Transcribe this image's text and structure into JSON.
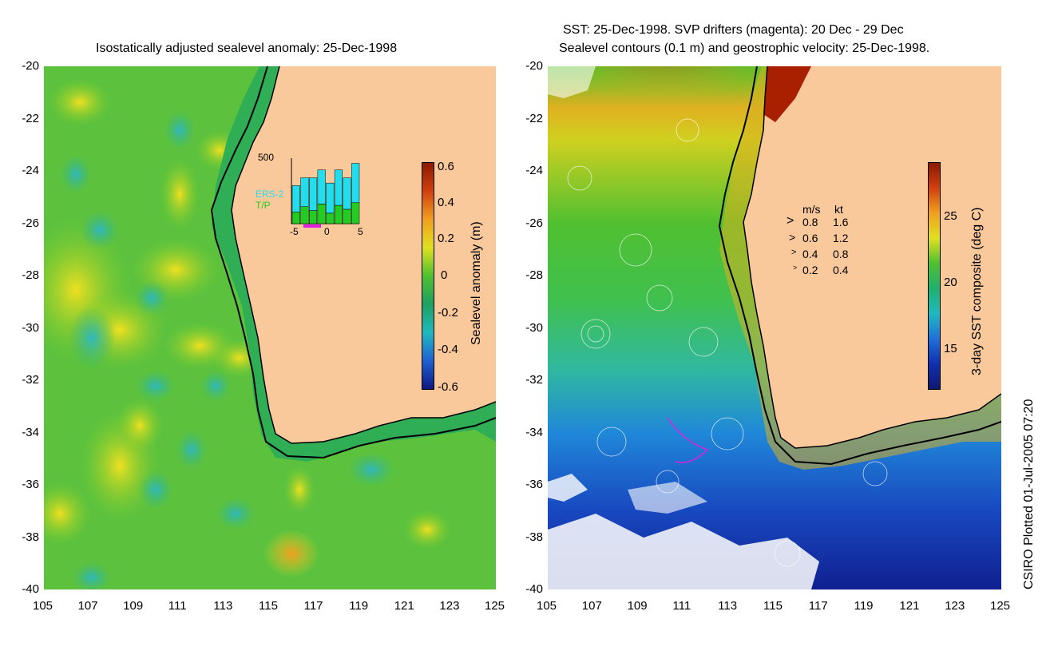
{
  "left_panel": {
    "title": "Isostatically adjusted sealevel anomaly: 25-Dec-1998",
    "colorbar_label": "Sealevel anomaly (m)",
    "colorbar_ticks": [
      "0.6",
      "0.4",
      "0.2",
      "0",
      "-0.2",
      "-0.4",
      "-0.6"
    ],
    "inset": {
      "ymax_label": "500",
      "series": [
        {
          "name": "ERS-2",
          "color": "#22ddee",
          "values": [
            200,
            220,
            250,
            260,
            230,
            270,
            240,
            300
          ]
        },
        {
          "name": "T/P",
          "color": "#22cc22",
          "values": [
            90,
            130,
            100,
            150,
            80,
            140,
            110,
            160
          ]
        }
      ],
      "x_ticks": [
        "-5",
        "0",
        "5"
      ]
    }
  },
  "right_panel": {
    "title_line1": "SST: 25-Dec-1998. SVP drifters (magenta): 20 Dec - 29 Dec",
    "title_line2": "Sealevel contours (0.1 m) and geostrophic velocity: 25-Dec-1998.",
    "colorbar_label": "3-day SST composite (deg C)",
    "colorbar_ticks": [
      "25",
      "20",
      "15"
    ],
    "velocity_legend": {
      "header_ms": "m/s",
      "header_kt": "kt",
      "rows": [
        {
          "ms": "0.8",
          "kt": "1.6"
        },
        {
          "ms": "0.6",
          "kt": "1.2"
        },
        {
          "ms": "0.4",
          "kt": "0.8"
        },
        {
          "ms": "0.2",
          "kt": "0.4"
        }
      ]
    }
  },
  "axes": {
    "y_ticks": [
      "-20",
      "-22",
      "-24",
      "-26",
      "-28",
      "-30",
      "-32",
      "-34",
      "-36",
      "-38",
      "-40"
    ],
    "x_ticks": [
      "105",
      "107",
      "109",
      "111",
      "113",
      "115",
      "117",
      "119",
      "121",
      "123",
      "125"
    ]
  },
  "credit": "CSIRO Plotted 01-Jul-2005 07:20",
  "colors": {
    "land": "#f9c89b",
    "ocean_green": "#44c23e",
    "coast_shelf": "#2fae55"
  }
}
